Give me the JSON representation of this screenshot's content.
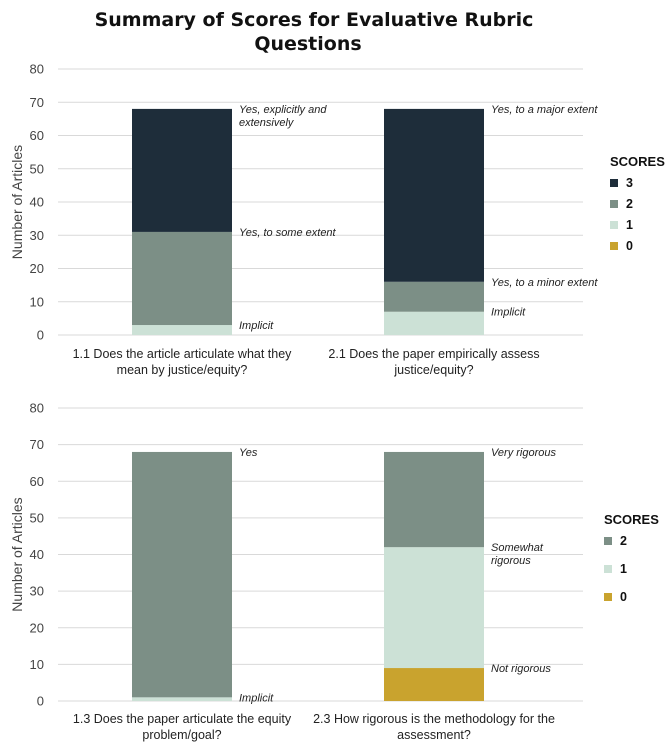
{
  "page": {
    "title": "Summary of Scores for Evaluative Rubric Questions"
  },
  "colors": {
    "3": "#1e2d3a",
    "2": "#7c8f86",
    "1": "#cce1d6",
    "0": "#c9a32e"
  },
  "chart_data": [
    {
      "type": "bar",
      "stacked": true,
      "ylabel": "Number of Articles",
      "ylim": [
        0,
        80
      ],
      "yticks": [
        0,
        10,
        20,
        30,
        40,
        50,
        60,
        70,
        80
      ],
      "grid": true,
      "legend": {
        "title": "SCORES",
        "position": "right",
        "entries": [
          {
            "key": "3",
            "label": "3"
          },
          {
            "key": "2",
            "label": "2"
          },
          {
            "key": "1",
            "label": "1"
          },
          {
            "key": "0",
            "label": "0"
          }
        ]
      },
      "categories": [
        {
          "label": [
            "1.1 Does the article articulate what they",
            "mean by justice/equity?"
          ],
          "segments": [
            {
              "score": "1",
              "value": 3,
              "annotation": [
                "Implicit"
              ]
            },
            {
              "score": "2",
              "value": 28,
              "annotation": [
                "Yes, to some extent"
              ]
            },
            {
              "score": "3",
              "value": 37,
              "annotation": [
                "Yes, explicitly and",
                "extensively"
              ]
            }
          ]
        },
        {
          "label": [
            "2.1 Does the paper empirically assess",
            "justice/equity?"
          ],
          "segments": [
            {
              "score": "1",
              "value": 7,
              "annotation": [
                "Implicit"
              ]
            },
            {
              "score": "2",
              "value": 9,
              "annotation": [
                "Yes, to a minor extent"
              ]
            },
            {
              "score": "3",
              "value": 52,
              "annotation": [
                "Yes, to a major extent"
              ]
            }
          ]
        }
      ]
    },
    {
      "type": "bar",
      "stacked": true,
      "ylabel": "Number of Articles",
      "ylim": [
        0,
        80
      ],
      "yticks": [
        0,
        10,
        20,
        30,
        40,
        50,
        60,
        70,
        80
      ],
      "grid": true,
      "legend": {
        "title": "SCORES",
        "position": "right",
        "entries": [
          {
            "key": "2",
            "label": "2"
          },
          {
            "key": "1",
            "label": "1"
          },
          {
            "key": "0",
            "label": "0"
          }
        ]
      },
      "categories": [
        {
          "label": [
            "1.3 Does the paper articulate the equity",
            "problem/goal?"
          ],
          "segments": [
            {
              "score": "1",
              "value": 1,
              "annotation": [
                "Implicit"
              ]
            },
            {
              "score": "2",
              "value": 67,
              "annotation": [
                "Yes"
              ]
            }
          ]
        },
        {
          "label": [
            "2.3 How rigorous is the methodology for the",
            "assessment?"
          ],
          "segments": [
            {
              "score": "0",
              "value": 9,
              "annotation": [
                "Not rigorous"
              ]
            },
            {
              "score": "1",
              "value": 33,
              "annotation": [
                "Somewhat",
                "rigorous"
              ]
            },
            {
              "score": "2",
              "value": 26,
              "annotation": [
                "Very rigorous"
              ]
            }
          ]
        }
      ]
    }
  ]
}
